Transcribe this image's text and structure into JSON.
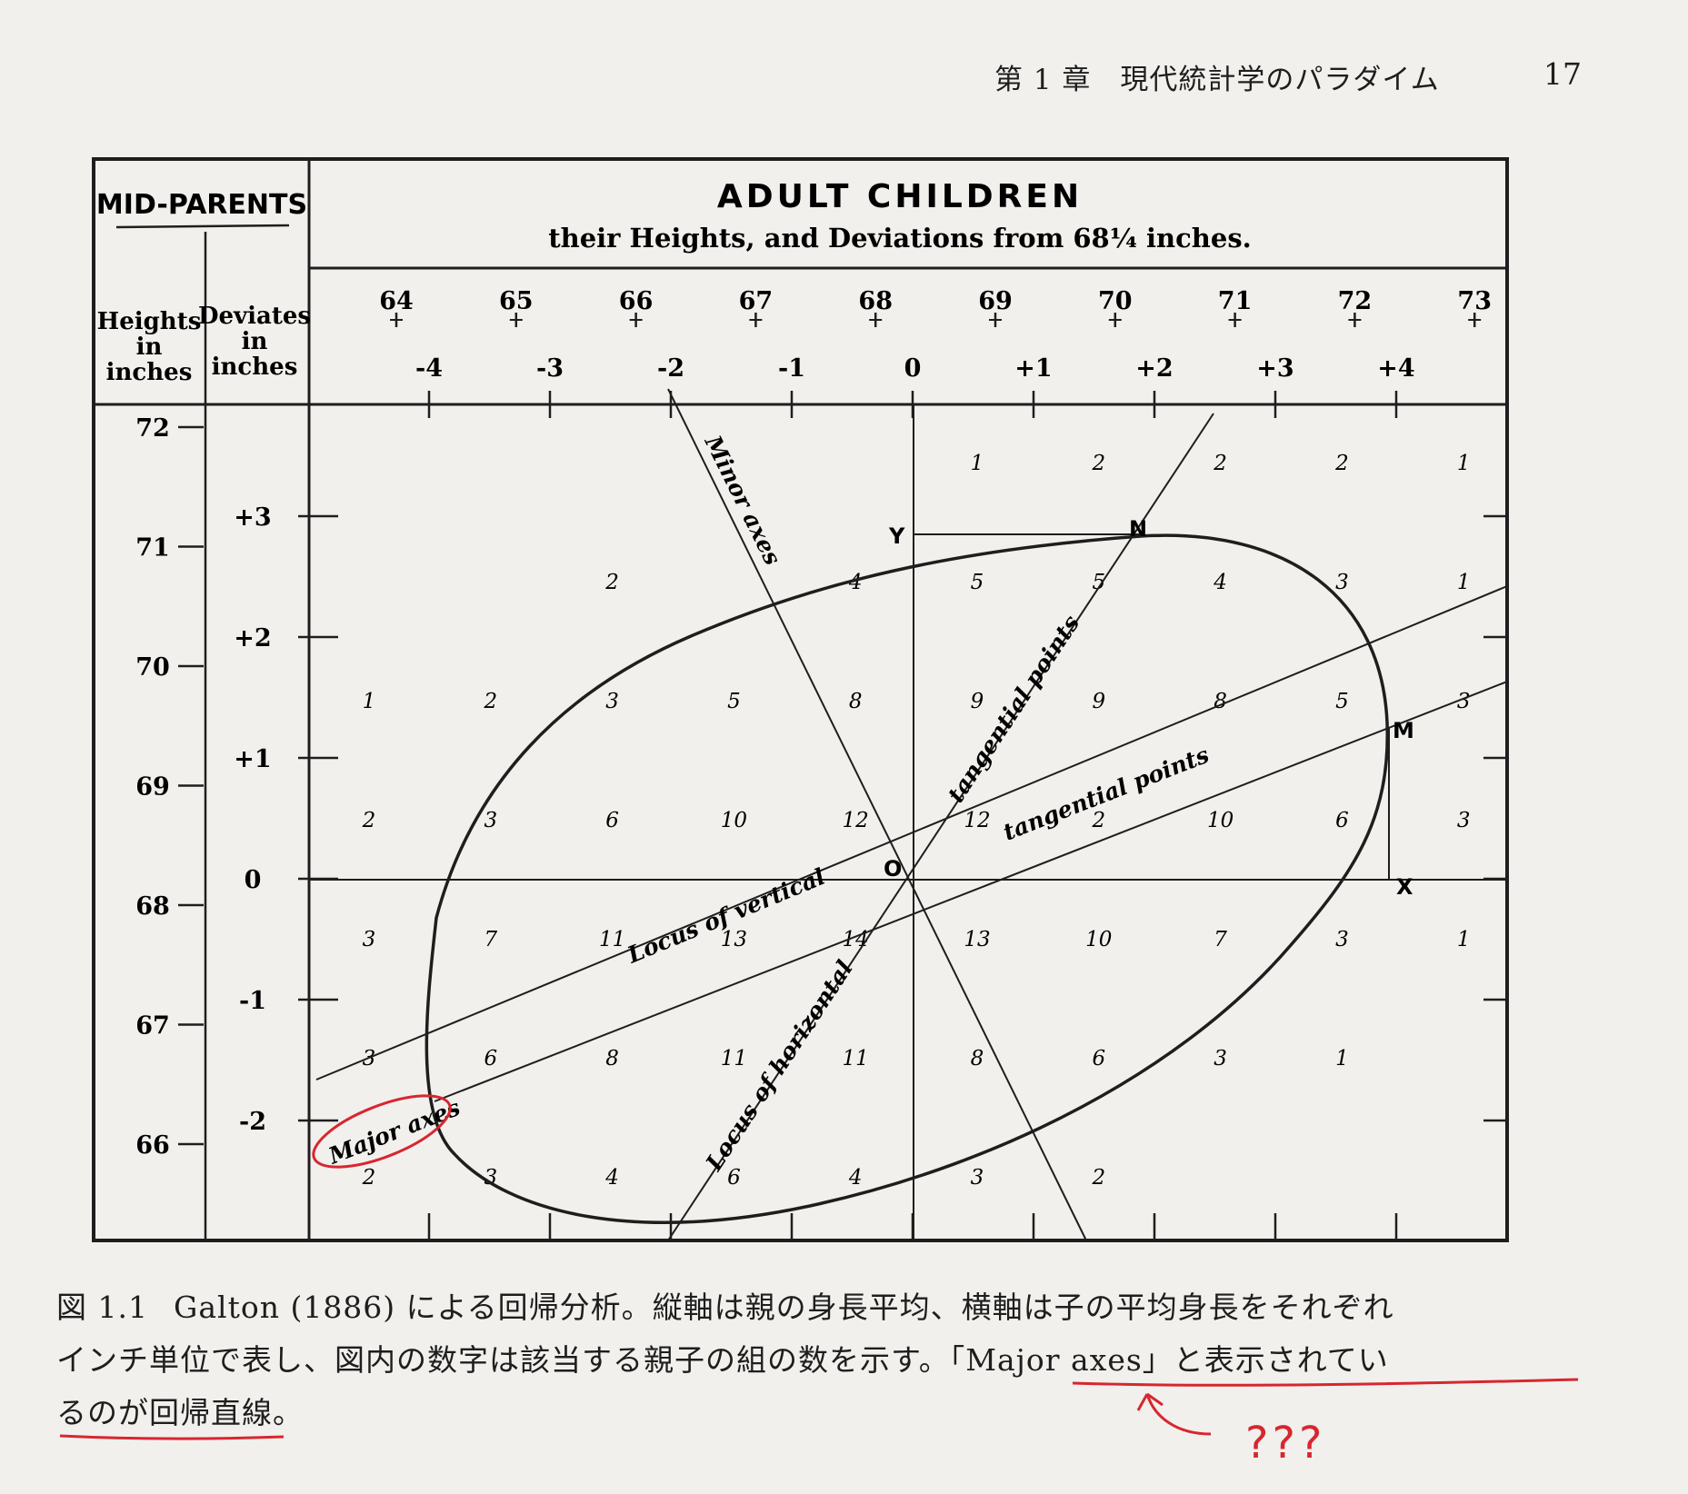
{
  "page_header": {
    "chapter": "第 1 章　現代統計学のパラダイム",
    "page_number": "17"
  },
  "figure": {
    "mid_parents_title": "MID-PARENTS",
    "heights_col_header": [
      "Heights",
      "in",
      "inches"
    ],
    "deviates_col_header": [
      "Deviates",
      "in",
      "inches"
    ],
    "title": "ADULT CHILDREN",
    "subtitle": "their Heights, and Deviations from 68¼ inches.",
    "top_heights": [
      "64",
      "65",
      "66",
      "67",
      "68",
      "69",
      "70",
      "71",
      "72",
      "73"
    ],
    "top_deviations": [
      "-4",
      "-3",
      "-2",
      "-1",
      "0",
      "+1",
      "+2",
      "+3",
      "+4"
    ],
    "left_heights": [
      "72",
      "71",
      "70",
      "69",
      "68",
      "67",
      "66"
    ],
    "left_deviations": [
      "+3",
      "+2",
      "+1",
      "0",
      "-1",
      "-2"
    ],
    "point_labels": {
      "Y": "Y",
      "N": "N",
      "M": "M",
      "X": "X",
      "O": "O"
    },
    "line_labels": {
      "minor_axes": "Minor axes",
      "tangential_points_upper": "tangential points",
      "tangential_points_lower": "tangential points",
      "locus_of_vertical": "Locus of vertical",
      "locus_of_horizontal": "Locus of horizontal",
      "major_axes": "Major axes"
    },
    "counts": [
      [
        "",
        "",
        "",
        "",
        "",
        "1",
        "2",
        "2",
        "2",
        "1"
      ],
      [
        "",
        "",
        "2",
        "",
        "4",
        "5",
        "5",
        "4",
        "3",
        "1"
      ],
      [
        "1",
        "2",
        "3",
        "5",
        "8",
        "9",
        "9",
        "8",
        "5",
        "3"
      ],
      [
        "2",
        "3",
        "6",
        "10",
        "12",
        "12",
        "2",
        "10",
        "6",
        "3"
      ],
      [
        "3",
        "7",
        "11",
        "13",
        "14",
        "13",
        "10",
        "7",
        "3",
        "1"
      ],
      [
        "3",
        "6",
        "8",
        "11",
        "11",
        "8",
        "6",
        "3",
        "1",
        ""
      ],
      [
        "2",
        "3",
        "4",
        "6",
        "4",
        "3",
        "2",
        "",
        "",
        ""
      ]
    ]
  },
  "caption": {
    "label": "図 1.1",
    "lines": [
      "Galton (1886) による回帰分析。縦軸は親の身長平均、横軸は子の平均身長をそれぞれ",
      "インチ単位で表し、図内の数字は該当する親子の組の数を示す。「Major axes」と表示されてい",
      "るのが回帰直線。"
    ]
  },
  "annotation": {
    "note": "???",
    "color": "#d8262f"
  }
}
